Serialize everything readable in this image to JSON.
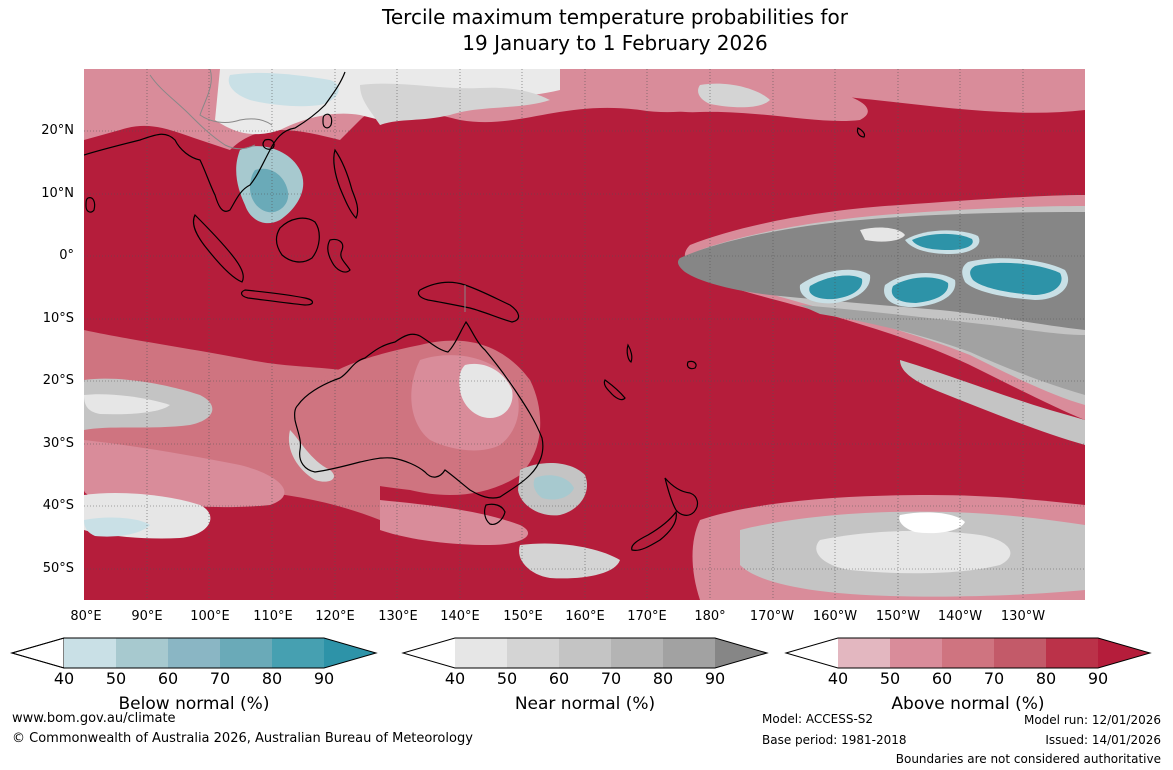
{
  "title": {
    "line1": "Tercile maximum temperature probabilities for",
    "line2": "19 January to 1 February 2026"
  },
  "axes": {
    "lat_labels": [
      "20°N",
      "10°N",
      "0°",
      "10°S",
      "20°S",
      "30°S",
      "40°S",
      "50°S"
    ],
    "lon_labels": [
      "80°E",
      "90°E",
      "100°E",
      "110°E",
      "120°E",
      "130°E",
      "140°E",
      "150°E",
      "160°E",
      "170°E",
      "180°",
      "170°W",
      "160°W",
      "150°W",
      "140°W",
      "130°W"
    ]
  },
  "colorbars": [
    {
      "name": "Below normal (%)",
      "ticks": [
        "40",
        "50",
        "60",
        "70",
        "80",
        "90"
      ],
      "colors": [
        "#ffffff",
        "#c9e0e6",
        "#a7c9cf",
        "#8ab6c4",
        "#6aaab8",
        "#46a0b1",
        "#2d93a8"
      ]
    },
    {
      "name": "Near normal (%)",
      "ticks": [
        "40",
        "50",
        "60",
        "70",
        "80",
        "90"
      ],
      "colors": [
        "#ffffff",
        "#e6e6e6",
        "#d4d4d4",
        "#c4c4c4",
        "#b4b4b4",
        "#a2a2a2",
        "#868686"
      ]
    },
    {
      "name": "Above normal (%)",
      "ticks": [
        "40",
        "50",
        "60",
        "70",
        "80",
        "90"
      ],
      "colors": [
        "#ffffff",
        "#e3b7c0",
        "#d98c9a",
        "#cf7480",
        "#c35a69",
        "#bb3249",
        "#b51d3b"
      ]
    }
  ],
  "footer": {
    "url": "www.bom.gov.au/climate",
    "copyright": "© Commonwealth of Australia 2026, Australian Bureau of Meteorology",
    "model": "Model: ACCESS-S2",
    "base_period": "Base period: 1981-2018",
    "model_run": "Model run: 12/01/2026",
    "issued": "Issued: 14/01/2026",
    "disclaimer": "Boundaries are not considered authoritative"
  }
}
